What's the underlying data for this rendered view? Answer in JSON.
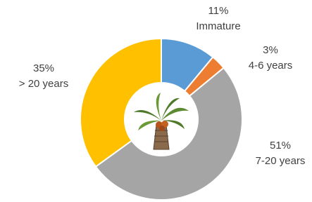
{
  "chart_data": {
    "type": "donut",
    "categories": [
      "Immature",
      "4-6 years",
      "7-20 years",
      "> 20 years"
    ],
    "values": [
      11,
      3,
      51,
      35
    ],
    "value_labels": [
      "11%",
      "3%",
      "51%",
      "35%"
    ],
    "colors": [
      "#5b9bd5",
      "#ed7d31",
      "#a5a5a5",
      "#ffc000"
    ]
  }
}
